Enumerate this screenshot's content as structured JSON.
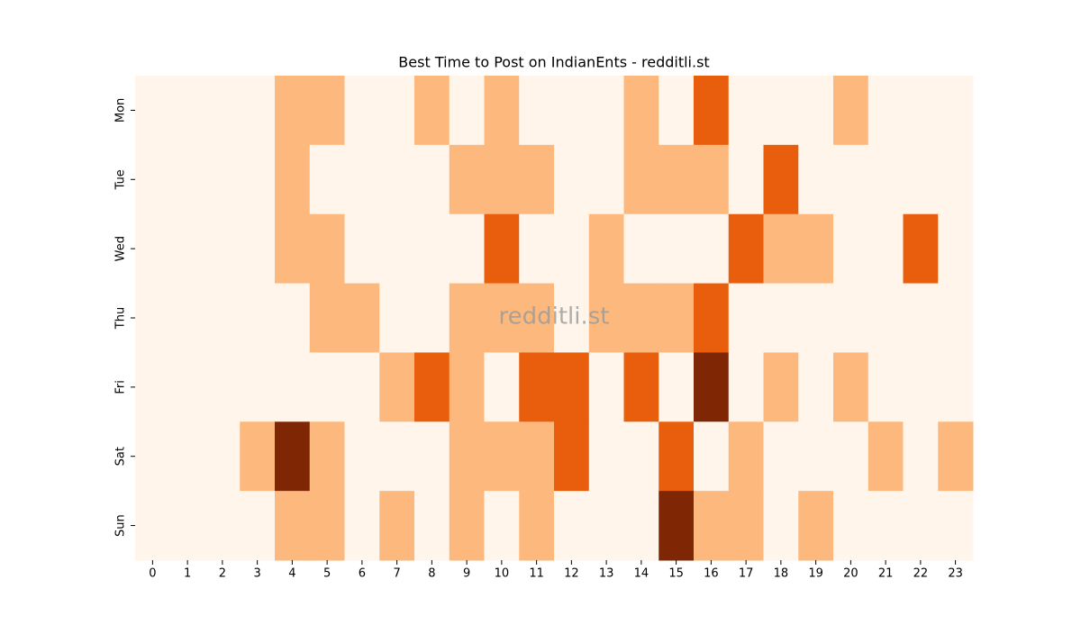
{
  "chart_data": {
    "type": "heatmap",
    "title": "Best Time to Post on IndianEnts - redditli.st",
    "watermark": "redditli.st",
    "x": [
      0,
      1,
      2,
      3,
      4,
      5,
      6,
      7,
      8,
      9,
      10,
      11,
      12,
      13,
      14,
      15,
      16,
      17,
      18,
      19,
      20,
      21,
      22,
      23
    ],
    "y": [
      "Mon",
      "Tue",
      "Wed",
      "Thu",
      "Fri",
      "Sat",
      "Sun"
    ],
    "values": [
      [
        0,
        0,
        0,
        0,
        1,
        1,
        0,
        0,
        1,
        0,
        1,
        0,
        0,
        0,
        1,
        0,
        2,
        0,
        0,
        0,
        1,
        0,
        0,
        0
      ],
      [
        0,
        0,
        0,
        0,
        1,
        0,
        0,
        0,
        0,
        1,
        1,
        1,
        0,
        0,
        1,
        1,
        1,
        0,
        2,
        0,
        0,
        0,
        0,
        0
      ],
      [
        0,
        0,
        0,
        0,
        1,
        1,
        0,
        0,
        0,
        0,
        2,
        0,
        0,
        1,
        0,
        0,
        0,
        2,
        1,
        1,
        0,
        0,
        2,
        0
      ],
      [
        0,
        0,
        0,
        0,
        0,
        1,
        1,
        0,
        0,
        1,
        1,
        1,
        0,
        1,
        1,
        1,
        2,
        0,
        0,
        0,
        0,
        0,
        0,
        0
      ],
      [
        0,
        0,
        0,
        0,
        0,
        0,
        0,
        1,
        2,
        1,
        0,
        2,
        2,
        0,
        2,
        0,
        3,
        0,
        1,
        0,
        1,
        0,
        0,
        0
      ],
      [
        0,
        0,
        0,
        1,
        3,
        1,
        0,
        0,
        0,
        1,
        1,
        1,
        2,
        0,
        0,
        2,
        0,
        1,
        0,
        0,
        0,
        1,
        0,
        1
      ],
      [
        0,
        0,
        0,
        0,
        1,
        1,
        0,
        1,
        0,
        1,
        0,
        1,
        0,
        0,
        0,
        3,
        1,
        1,
        0,
        1,
        0,
        0,
        0,
        0
      ]
    ],
    "colorscale": [
      "#fff5eb",
      "#fdb97d",
      "#e95e0d",
      "#7f2704"
    ],
    "zlim": [
      0,
      3
    ]
  }
}
